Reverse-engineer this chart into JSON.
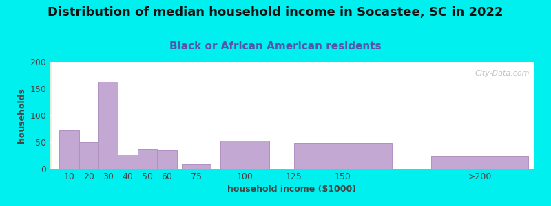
{
  "title": "Distribution of median household income in Socastee, SC in 2022",
  "subtitle": "Black or African American residents",
  "xlabel": "household income ($1000)",
  "ylabel": "households",
  "background_outer": "#00EFEF",
  "grad_color_left": "#cce8c0",
  "grad_color_right": "#eef5f0",
  "bar_color": "#c4a8d4",
  "bar_edge_color": "#b090c0",
  "title_fontsize": 13,
  "subtitle_fontsize": 11,
  "label_fontsize": 9,
  "tick_fontsize": 9,
  "watermark": "City-Data.com",
  "categories": [
    "10",
    "20",
    "30",
    "40",
    "50",
    "60",
    "75",
    "100",
    "125",
    "150",
    ">200"
  ],
  "values": [
    72,
    50,
    163,
    27,
    37,
    35,
    9,
    52,
    0,
    49,
    25
  ],
  "ylim": [
    0,
    200
  ],
  "yticks": [
    0,
    50,
    100,
    150,
    200
  ],
  "x_positions": [
    10,
    20,
    30,
    40,
    50,
    60,
    75,
    100,
    125,
    150,
    220
  ],
  "x_widths": [
    10,
    10,
    10,
    10,
    10,
    10,
    15,
    25,
    25,
    50,
    50
  ],
  "x_tick_pos": [
    10,
    20,
    30,
    40,
    50,
    60,
    75,
    100,
    125,
    150,
    220
  ],
  "xlim": [
    0,
    248
  ]
}
